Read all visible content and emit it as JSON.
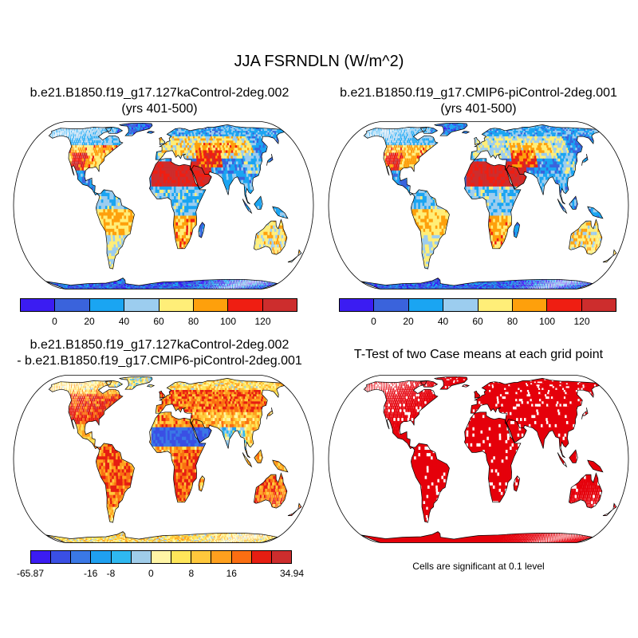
{
  "figure": {
    "title": "JJA FSRNDLN (W/m^2)"
  },
  "panels": {
    "top_left": {
      "title_line1": "b.e21.B1850.f19_g17.127kaControl-2deg.002",
      "title_line2": "(yrs 401-500)"
    },
    "top_right": {
      "title_line1": "b.e21.B1850.f19_g17.CMIP6-piControl-2deg.001",
      "title_line2": "(yrs 401-500)"
    },
    "bottom_left": {
      "title_line1": "b.e21.B1850.f19_g17.127kaControl-2deg.002",
      "title_line2": "- b.e21.B1850.f19_g17.CMIP6-piControl-2deg.001"
    },
    "bottom_right": {
      "title_line1": "T-Test of two Case means at each grid point",
      "footnote": "Cells are significant at 0.1 level"
    }
  },
  "colorbars": {
    "abs": {
      "colors": [
        "#3b1cf2",
        "#3a63dc",
        "#1aa5f2",
        "#9ccdef",
        "#ffee78",
        "#fea00c",
        "#ef1e12",
        "#cd2d2d"
      ],
      "ticks": [
        "0",
        "20",
        "40",
        "60",
        "80",
        "100",
        "120"
      ]
    },
    "diff": {
      "colors": [
        "#3b1cf2",
        "#3a4fe4",
        "#3a78e6",
        "#1fa0f0",
        "#2fb8f0",
        "#a0cdea",
        "#fff5a6",
        "#ffe65a",
        "#ffc83c",
        "#ffa01e",
        "#fa6e12",
        "#e61e12",
        "#cd2d2d"
      ],
      "ticks": [
        "-65.87",
        "-16",
        "-8",
        "0",
        "8",
        "16",
        "34.94"
      ]
    },
    "significance_color": "#e5000b"
  }
}
